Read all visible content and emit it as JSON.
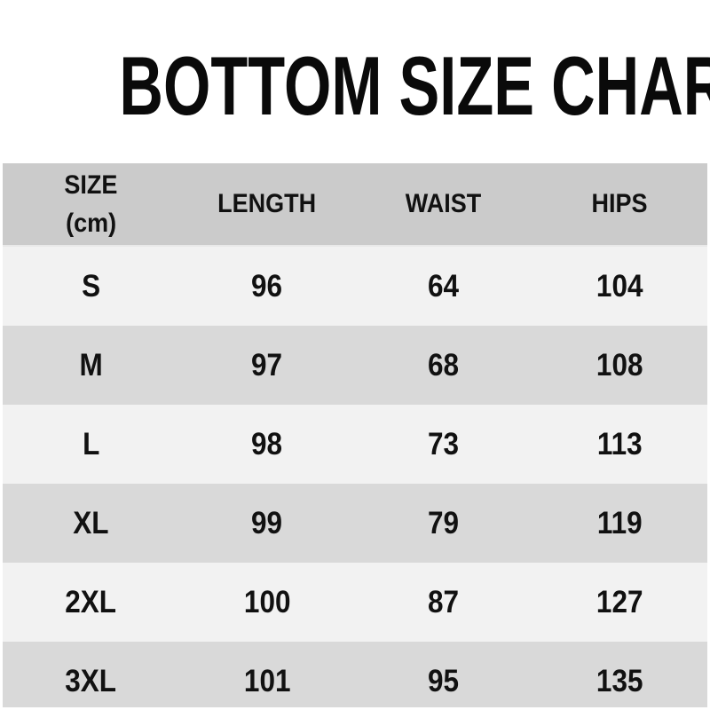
{
  "title": "BOTTOM SIZE CHART",
  "header": {
    "size_label": "SIZE",
    "size_sublabel": "(cm)",
    "length_label": "LENGTH",
    "waist_label": "WAIST",
    "hips_label": "HIPS"
  },
  "rows": [
    {
      "size": "S",
      "length": "96",
      "waist": "64",
      "hips": "104"
    },
    {
      "size": "M",
      "length": "97",
      "waist": "68",
      "hips": "108"
    },
    {
      "size": "L",
      "length": "98",
      "waist": "73",
      "hips": "113"
    },
    {
      "size": "XL",
      "length": "99",
      "waist": "79",
      "hips": "119"
    },
    {
      "size": "2XL",
      "length": "100",
      "waist": "87",
      "hips": "127"
    },
    {
      "size": "3XL",
      "length": "101",
      "waist": "95",
      "hips": "135"
    }
  ],
  "colors": {
    "header_bg": "#cbcbcb",
    "row_light_bg": "#f2f2f2",
    "row_dark_bg": "#d9d9d9",
    "text": "#111111",
    "title_text": "#0a0a0a",
    "page_bg": "#ffffff"
  },
  "chart_data": {
    "type": "table",
    "title": "BOTTOM SIZE CHART",
    "unit": "cm",
    "columns": [
      "SIZE (cm)",
      "LENGTH",
      "WAIST",
      "HIPS"
    ],
    "rows": [
      [
        "S",
        96,
        64,
        104
      ],
      [
        "M",
        97,
        68,
        108
      ],
      [
        "L",
        98,
        73,
        113
      ],
      [
        "XL",
        99,
        79,
        119
      ],
      [
        "2XL",
        100,
        87,
        127
      ],
      [
        "3XL",
        101,
        95,
        135
      ]
    ]
  }
}
